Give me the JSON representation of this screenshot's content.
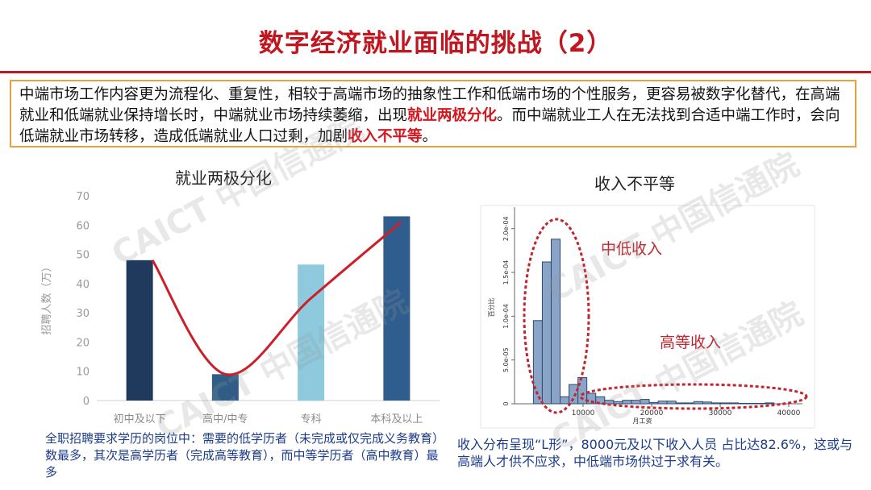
{
  "page": {
    "title": "数字经济就业面临的挑战（2）",
    "intro_parts": [
      {
        "text": "中端市场工作内容更为流程化、重复性，相较于高端市场的抽象性工作和低端市场的个性服务，更容易被数字化替代，在高端就业和低端就业保持增长时，中端就业市场持续萎缩，出现",
        "highlight": false
      },
      {
        "text": "就业两极分化",
        "highlight": true
      },
      {
        "text": "。而中端就业工人在无法找到合适中端工作时，会向低端就业市场转移，造成低端就业人口过剩，加剧",
        "highlight": false
      },
      {
        "text": "收入不平等",
        "highlight": true
      },
      {
        "text": "。",
        "highlight": false
      }
    ],
    "watermark": "CAICT 中国信通院",
    "left_caption": "全职招聘要求学历的岗位中：需要的低学历者（未完成或仅完成义务教育）数最多，其次是高学历者（完成高等教育），而中等学历者（高中教育）最多",
    "right_caption": "收入分布呈现“L形”，8000元及以下收入人员 占比达82.6%，这或与高端人才供不应求，中低端市场供过于求有关。"
  },
  "colors": {
    "title": "#c0161f",
    "highlight": "#d4171f",
    "intro_border": "#e8a33c",
    "caption": "#1c3c8c",
    "curve": "#cc1f2a",
    "hist_fill": "#8aa4c8",
    "hist_stroke": "#2e4a72",
    "ellipse": "#c0262f",
    "annot": "#c0262f"
  },
  "chart_data": [
    {
      "type": "bar",
      "title": "就业两极分化",
      "ylabel": "招聘人数（万）",
      "xlabel": "",
      "categories": [
        "初中及以下",
        "高中/中专",
        "专科",
        "本科及以上"
      ],
      "values": [
        48,
        9,
        46.5,
        63
      ],
      "bar_colors": [
        "#1f3a5c",
        "#2f5d86",
        "#8ec9dd",
        "#2f5d8e"
      ],
      "ylim": [
        0,
        70
      ],
      "yticks": [
        0,
        10,
        20,
        30,
        40,
        50,
        60,
        70
      ],
      "trend_curve": {
        "x_start": 0.15,
        "x_end": 3.05,
        "y": [
          48,
          9,
          35,
          61
        ]
      },
      "grid": false
    },
    {
      "type": "bar",
      "title": "收入不平等",
      "ylabel": "百分比",
      "xlabel": "月工资",
      "xlim": [
        0,
        42000
      ],
      "xticks": [
        10000,
        20000,
        30000,
        40000
      ],
      "ylim": [
        0,
        0.00022
      ],
      "yticks": [
        {
          "value": 0,
          "label": "0"
        },
        {
          "value": 5e-05,
          "label": "5.0e-05"
        },
        {
          "value": 0.0001,
          "label": "1.0e-04"
        },
        {
          "value": 0.00015,
          "label": "1.5e-04"
        },
        {
          "value": 0.0002,
          "label": "2.0e-04"
        }
      ],
      "bin_width": 1300,
      "bins_start": [
        2750,
        4050,
        5350,
        6650,
        7950,
        9250,
        10550,
        11850,
        13150,
        14450,
        15750,
        17050,
        18350,
        19650,
        20950,
        22250,
        23550,
        24850,
        26150,
        27450,
        28750,
        30050,
        31350,
        32650,
        33950,
        35250,
        36550
      ],
      "values": [
        9.5e-05,
        0.000162,
        0.000188,
        8e-06,
        2.2e-05,
        3e-05,
        1.2e-05,
        8e-06,
        4e-06,
        2.5e-06,
        4e-06,
        4e-06,
        5e-06,
        1.5e-06,
        3e-06,
        3e-06,
        1e-06,
        1e-06,
        2.5e-06,
        2e-06,
        1e-06,
        1e-06,
        1e-06,
        5e-07,
        5e-07,
        5e-07,
        1e-06
      ],
      "annotations": [
        "中低收入",
        "高等收入"
      ]
    }
  ]
}
